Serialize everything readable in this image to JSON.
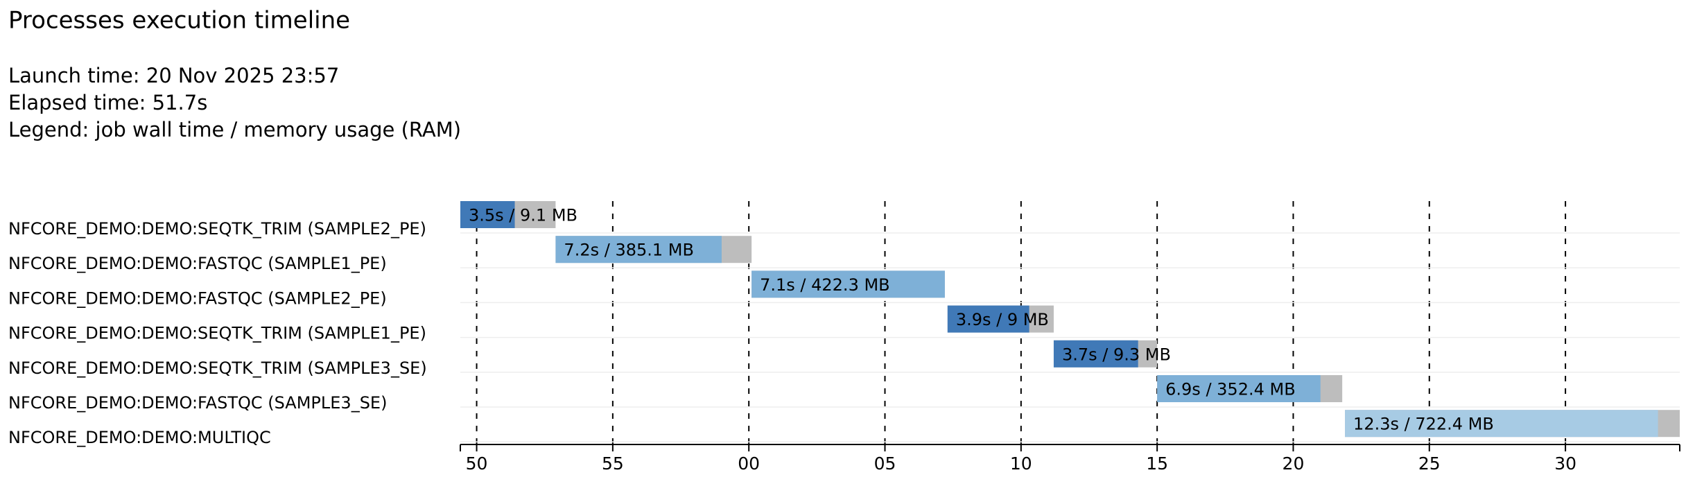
{
  "chart_data": {
    "type": "timeline",
    "title": "Processes execution timeline",
    "info": [
      "Launch time: 20 Nov 2025 23:57",
      "Elapsed time: 51.7s",
      "Legend: job wall time / memory usage (RAM)"
    ],
    "xlim": [
      49.4,
      94.2
    ],
    "xticks": [
      50,
      55,
      {
        "value": 60,
        "label": "00"
      },
      {
        "value": 65,
        "label": "05"
      },
      {
        "value": 70,
        "label": "10"
      },
      {
        "value": 75,
        "label": "15"
      },
      {
        "value": 80,
        "label": "20"
      },
      {
        "value": 85,
        "label": "25"
      },
      {
        "value": 90,
        "label": "30"
      }
    ],
    "grid": true,
    "rest_color": "#bdbdbd",
    "tasks": [
      {
        "name": "NFCORE_DEMO:DEMO:SEQTK_TRIM (SAMPLE2_PE)",
        "start": 49.4,
        "realtime_end": 51.4,
        "end": 52.9,
        "color": "#4079b7",
        "label": "3.5s / 9.1 MB"
      },
      {
        "name": "NFCORE_DEMO:DEMO:FASTQC (SAMPLE1_PE)",
        "start": 52.9,
        "realtime_end": 59.0,
        "end": 60.1,
        "color": "#7eb0d7",
        "label": "7.2s / 385.1 MB"
      },
      {
        "name": "NFCORE_DEMO:DEMO:FASTQC (SAMPLE2_PE)",
        "start": 60.1,
        "realtime_end": 67.2,
        "end": 67.2,
        "color": "#7eb0d7",
        "label": "7.1s / 422.3 MB"
      },
      {
        "name": "NFCORE_DEMO:DEMO:SEQTK_TRIM (SAMPLE1_PE)",
        "start": 67.3,
        "realtime_end": 70.3,
        "end": 71.2,
        "color": "#4079b7",
        "label": "3.9s / 9 MB"
      },
      {
        "name": "NFCORE_DEMO:DEMO:SEQTK_TRIM (SAMPLE3_SE)",
        "start": 71.2,
        "realtime_end": 74.3,
        "end": 75.0,
        "color": "#4079b7",
        "label": "3.7s / 9.3 MB"
      },
      {
        "name": "NFCORE_DEMO:DEMO:FASTQC (SAMPLE3_SE)",
        "start": 75.0,
        "realtime_end": 81.0,
        "end": 81.8,
        "color": "#7eb0d7",
        "label": "6.9s / 352.4 MB"
      },
      {
        "name": "NFCORE_DEMO:DEMO:MULTIQC",
        "start": 81.9,
        "realtime_end": 93.4,
        "end": 94.2,
        "color": "#a7cbe4",
        "label": "12.3s / 722.4 MB"
      }
    ]
  }
}
